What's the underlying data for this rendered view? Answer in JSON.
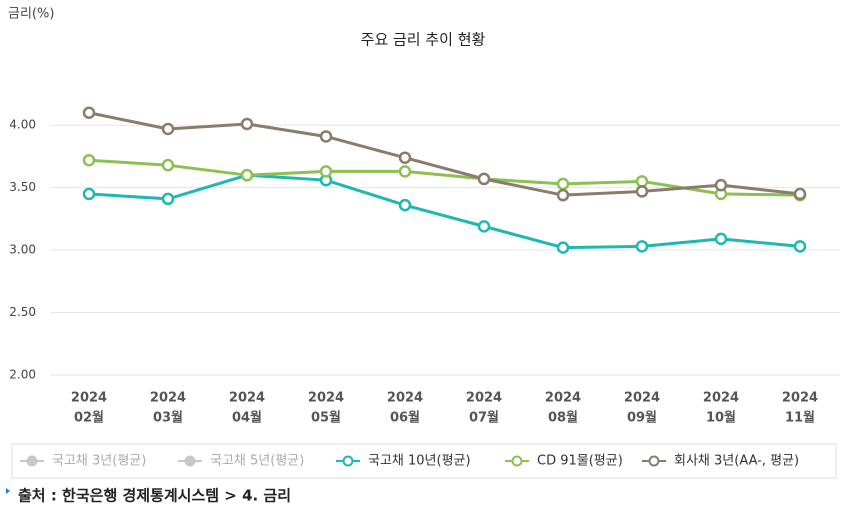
{
  "chart_data": {
    "type": "line",
    "title": "주요 금리 추이 현황",
    "y_label": "금리(%)",
    "categories": [
      [
        "2024",
        "02월"
      ],
      [
        "2024",
        "03월"
      ],
      [
        "2024",
        "04월"
      ],
      [
        "2024",
        "05월"
      ],
      [
        "2024",
        "06월"
      ],
      [
        "2024",
        "07월"
      ],
      [
        "2024",
        "08월"
      ],
      [
        "2024",
        "09월"
      ],
      [
        "2024",
        "10월"
      ],
      [
        "2024",
        "11월"
      ]
    ],
    "series": [
      {
        "name": "국고채 3년(평균)",
        "color": "#c8c8c8",
        "hidden": true,
        "values": [
          null,
          null,
          null,
          null,
          null,
          null,
          null,
          null,
          null,
          null
        ]
      },
      {
        "name": "국고채 5년(평균)",
        "color": "#c8c8c8",
        "hidden": true,
        "values": [
          null,
          null,
          null,
          null,
          null,
          null,
          null,
          null,
          null,
          null
        ]
      },
      {
        "name": "국고채 10년(평균)",
        "color": "#1db8b0",
        "values": [
          3.45,
          3.41,
          3.6,
          3.56,
          3.36,
          3.19,
          3.02,
          3.03,
          3.09,
          3.03
        ]
      },
      {
        "name": "CD 91물(평균)",
        "color": "#8cc152",
        "values": [
          3.72,
          3.68,
          3.6,
          3.63,
          3.63,
          3.57,
          3.53,
          3.55,
          3.45,
          3.44
        ]
      },
      {
        "name": "회사채 3년(AA-, 평균)",
        "color": "#8b7b6b",
        "values": [
          4.1,
          3.97,
          4.01,
          3.91,
          3.74,
          3.57,
          3.44,
          3.47,
          3.52,
          3.45
        ]
      }
    ],
    "ylim": [
      2,
      4.25
    ],
    "yticks": [
      {
        "value": 2,
        "label": "2.00"
      },
      {
        "value": 2.5,
        "label": "2.50"
      },
      {
        "value": 3,
        "label": "3.00"
      },
      {
        "value": 3.5,
        "label": "3.50"
      },
      {
        "value": 4,
        "label": "4.00"
      }
    ],
    "grid": true,
    "legend": "bottom"
  },
  "source": "출처 : 한국은행 경제통계시스템 > 4. 금리"
}
